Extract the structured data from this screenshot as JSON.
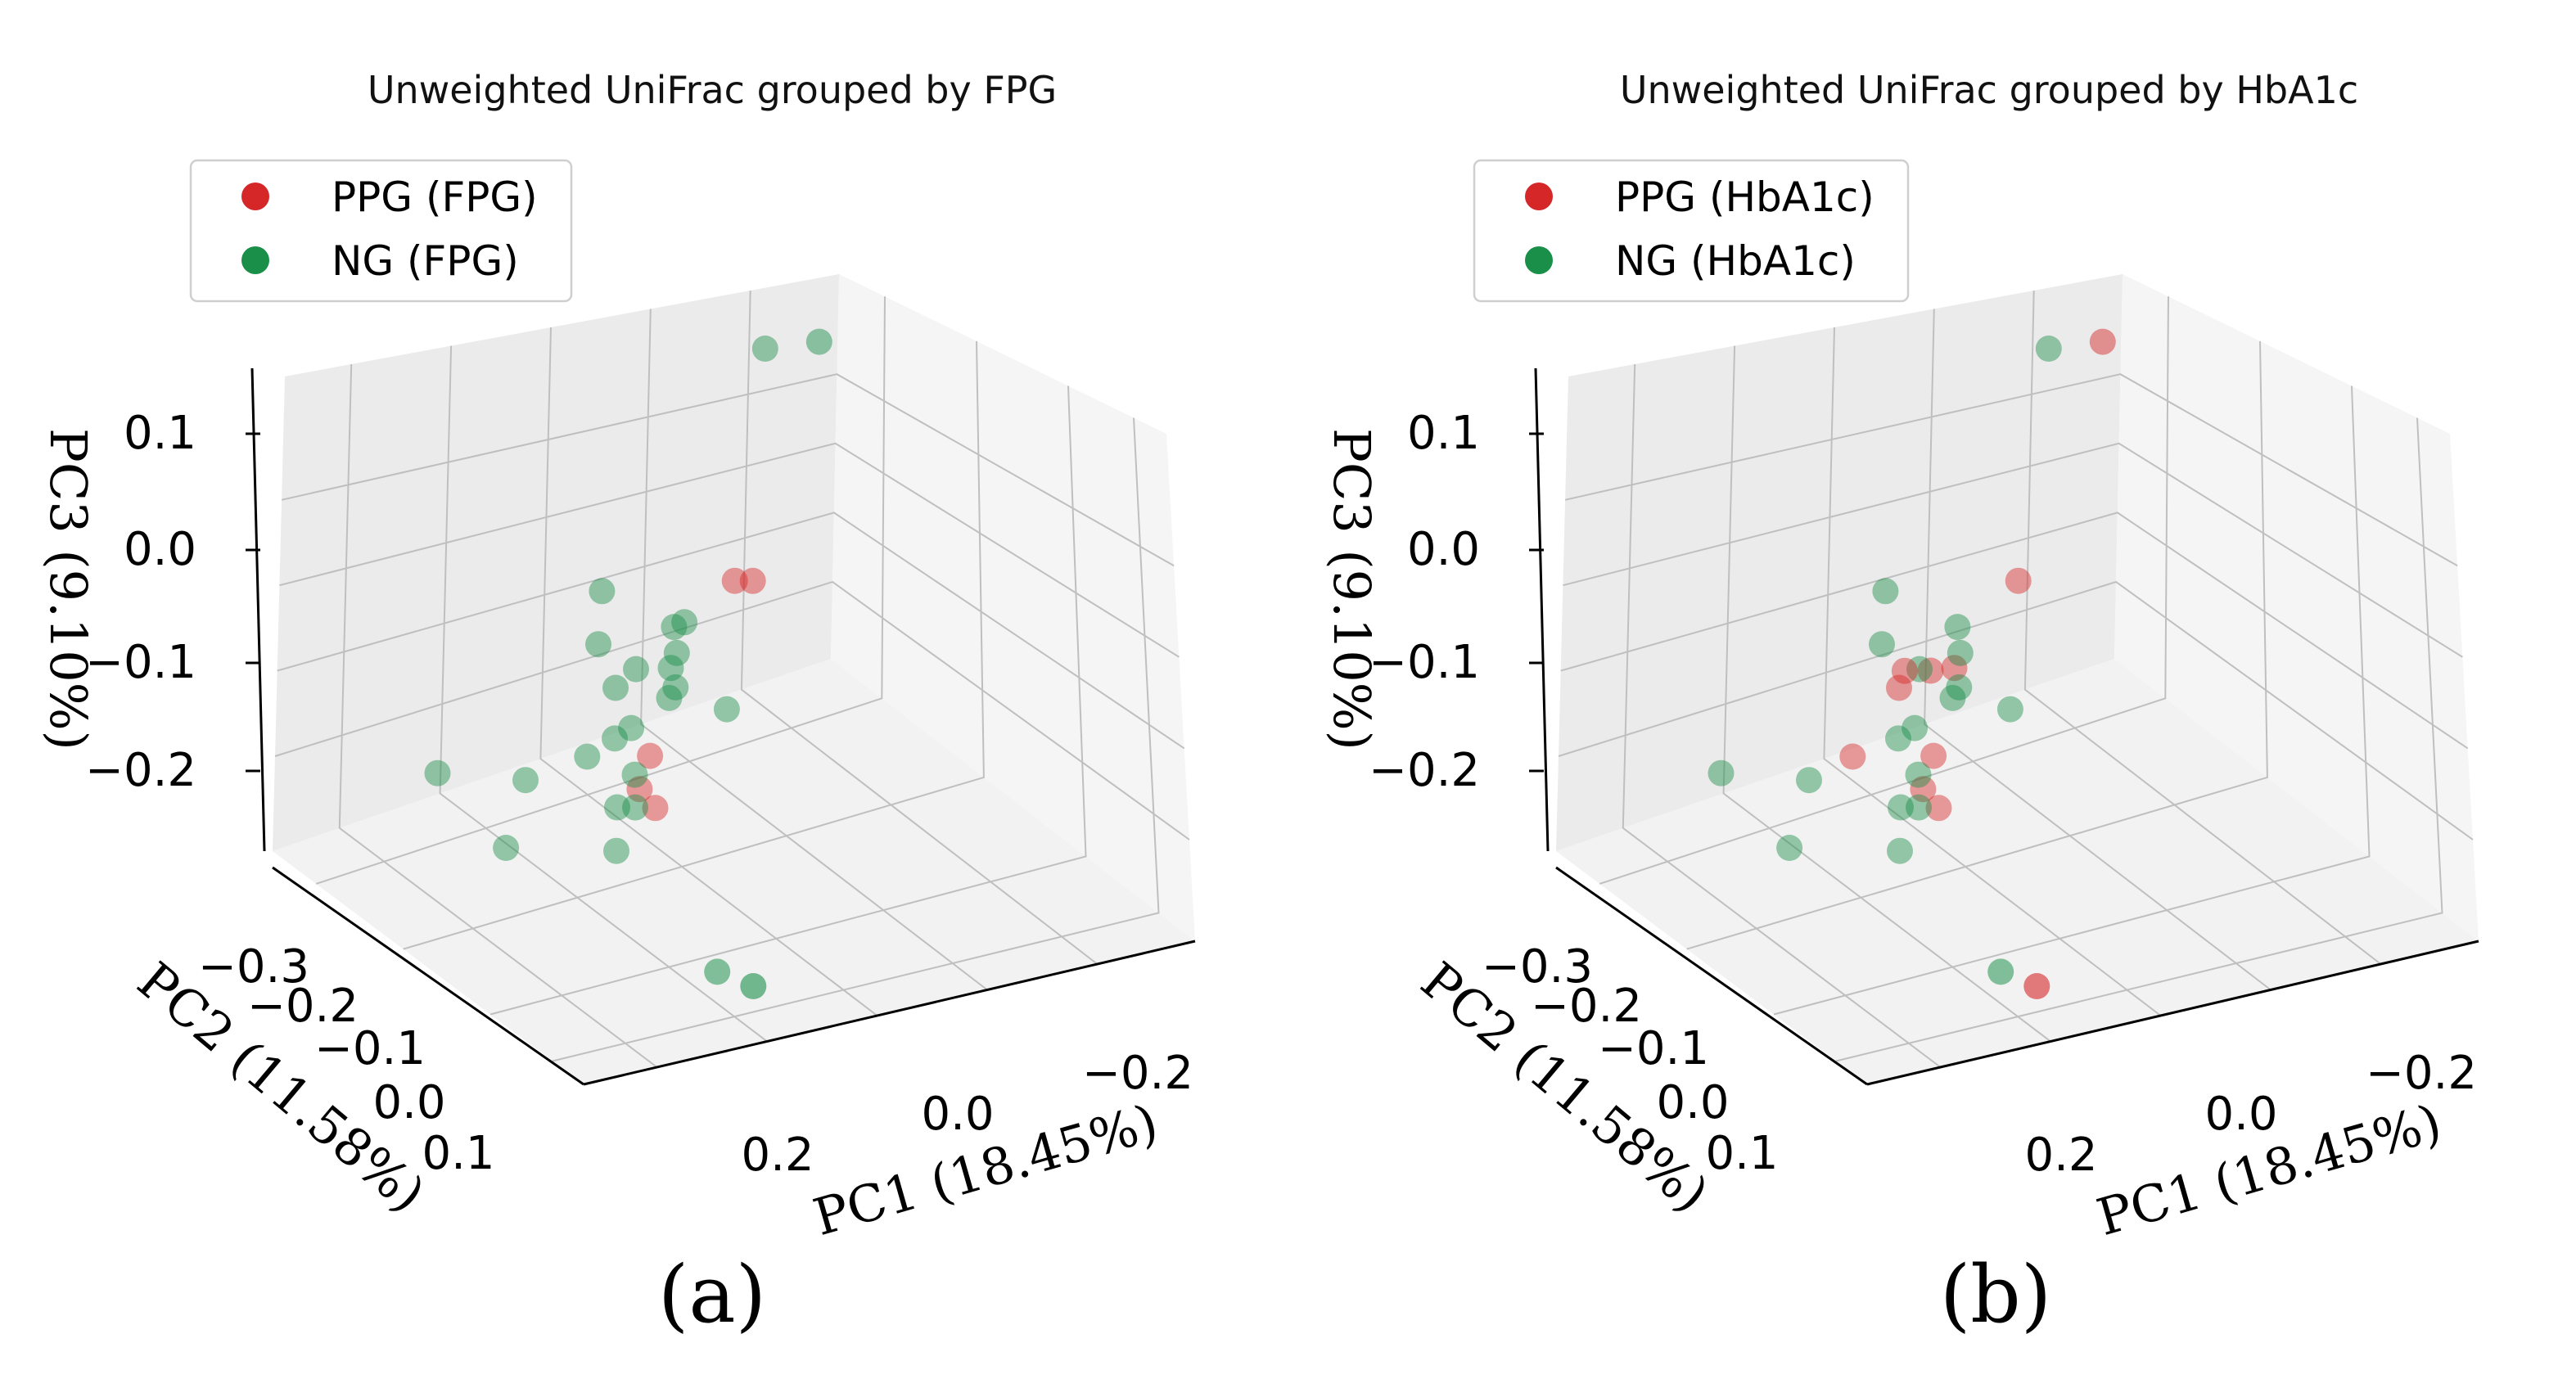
{
  "colors": {
    "ppg": "#d62728",
    "ng": "#1a8f4a",
    "pane_left": "#ebebeb",
    "pane_right": "#f5f5f5",
    "pane_floor": "#f2f2f2"
  },
  "chart_data": [
    {
      "type": "scatter3d",
      "panel_label": "(a)",
      "title": "Unweighted UniFrac grouped by FPG",
      "xlabel": "PC1 (18.45%)",
      "ylabel": "PC2 (11.58%)",
      "zlabel": "PC3 (9.10%)",
      "xticks": [
        "0.2",
        "0.0",
        "−0.2"
      ],
      "yticks": [
        "−0.3",
        "−0.2",
        "−0.1",
        "0.0",
        "0.1"
      ],
      "zticks": [
        "0.1",
        "0.0",
        "−0.1",
        "−0.2"
      ],
      "legend": [
        "PPG (FPG)",
        "NG (FPG)"
      ],
      "series": [
        {
          "name": "PPG (FPG)",
          "color_key": "ppg",
          "points": [
            [
              -0.08,
              0.02,
              0.03
            ],
            [
              -0.15,
              0.06,
              0.05
            ],
            [
              -0.2,
              0.07,
              0.06
            ],
            [
              0.3,
              -0.22,
              -0.1
            ],
            [
              0.29,
              -0.23,
              -0.1
            ]
          ]
        },
        {
          "name": "NG (FPG)",
          "color_key": "ng",
          "points": [
            [
              0.29,
              -0.24,
              0.22
            ],
            [
              0.26,
              -0.27,
              0.23
            ],
            [
              0.05,
              0.0,
              0.17
            ],
            [
              -0.01,
              0.03,
              0.15
            ],
            [
              0.01,
              -0.04,
              0.12
            ],
            [
              0.08,
              -0.08,
              0.06
            ],
            [
              0.06,
              -0.06,
              0.02
            ],
            [
              0.1,
              -0.05,
              0.0
            ],
            [
              0.07,
              -0.02,
              0.01
            ],
            [
              0.02,
              -0.01,
              -0.01
            ],
            [
              0.01,
              0.03,
              -0.02
            ],
            [
              -0.12,
              0.05,
              0.0
            ],
            [
              -0.11,
              0.06,
              0.0
            ],
            [
              0.16,
              -0.11,
              -0.05
            ],
            [
              0.14,
              -0.1,
              -0.08
            ],
            [
              0.16,
              -0.06,
              -0.14
            ],
            [
              0.08,
              -0.04,
              -0.13
            ],
            [
              -0.02,
              0.02,
              -0.14
            ],
            [
              0.24,
              -0.14,
              -0.18
            ],
            [
              0.27,
              -0.2,
              -0.25
            ],
            [
              -0.2,
              0.02,
              -0.2
            ],
            [
              -0.22,
              0.0,
              -0.22
            ],
            [
              0.12,
              0.03,
              -0.12
            ],
            [
              0.1,
              0.11,
              -0.05
            ],
            [
              0.0,
              0.1,
              -0.1
            ]
          ]
        }
      ]
    },
    {
      "type": "scatter3d",
      "panel_label": "(b)",
      "title": "Unweighted UniFrac grouped by HbA1c",
      "xlabel": "PC1 (18.45%)",
      "ylabel": "PC2 (11.58%)",
      "zlabel": "PC3 (9.10%)",
      "xticks": [
        "0.2",
        "0.0",
        "−0.2"
      ],
      "yticks": [
        "−0.3",
        "−0.2",
        "−0.1",
        "0.0",
        "0.1"
      ],
      "zticks": [
        "0.1",
        "0.0",
        "−0.1",
        "−0.2"
      ],
      "legend": [
        "PPG (HbA1c)",
        "NG (HbA1c)"
      ],
      "series": [
        {
          "name": "PPG (HbA1c)",
          "color_key": "ppg",
          "points": [
            [
              0.26,
              -0.27,
              0.23
            ],
            [
              0.06,
              -0.02,
              0.04
            ],
            [
              0.06,
              -0.06,
              0.02
            ],
            [
              0.08,
              -0.05,
              0.01
            ],
            [
              0.07,
              -0.02,
              0.01
            ],
            [
              -0.08,
              0.02,
              0.03
            ],
            [
              0.02,
              0.04,
              -0.02
            ],
            [
              -0.15,
              0.06,
              0.05
            ],
            [
              -0.2,
              0.07,
              0.06
            ],
            [
              0.3,
              -0.22,
              -0.1
            ],
            [
              -0.22,
              0.0,
              -0.22
            ]
          ]
        },
        {
          "name": "NG (HbA1c)",
          "color_key": "ng",
          "points": [
            [
              0.29,
              -0.24,
              0.22
            ],
            [
              0.05,
              0.0,
              0.17
            ],
            [
              -0.01,
              0.03,
              0.15
            ],
            [
              0.01,
              -0.04,
              0.12
            ],
            [
              0.1,
              -0.05,
              0.0
            ],
            [
              0.02,
              -0.01,
              -0.01
            ],
            [
              -0.12,
              0.05,
              0.0
            ],
            [
              -0.11,
              0.06,
              0.0
            ],
            [
              0.16,
              -0.11,
              -0.05
            ],
            [
              0.14,
              -0.1,
              -0.08
            ],
            [
              0.16,
              -0.06,
              -0.14
            ],
            [
              0.08,
              -0.04,
              -0.13
            ],
            [
              -0.02,
              0.02,
              -0.14
            ],
            [
              0.24,
              -0.14,
              -0.18
            ],
            [
              0.27,
              -0.2,
              -0.25
            ],
            [
              -0.2,
              0.02,
              -0.2
            ],
            [
              0.12,
              0.03,
              -0.12
            ],
            [
              0.1,
              0.11,
              -0.05
            ],
            [
              0.0,
              0.1,
              -0.1
            ]
          ]
        }
      ]
    }
  ]
}
